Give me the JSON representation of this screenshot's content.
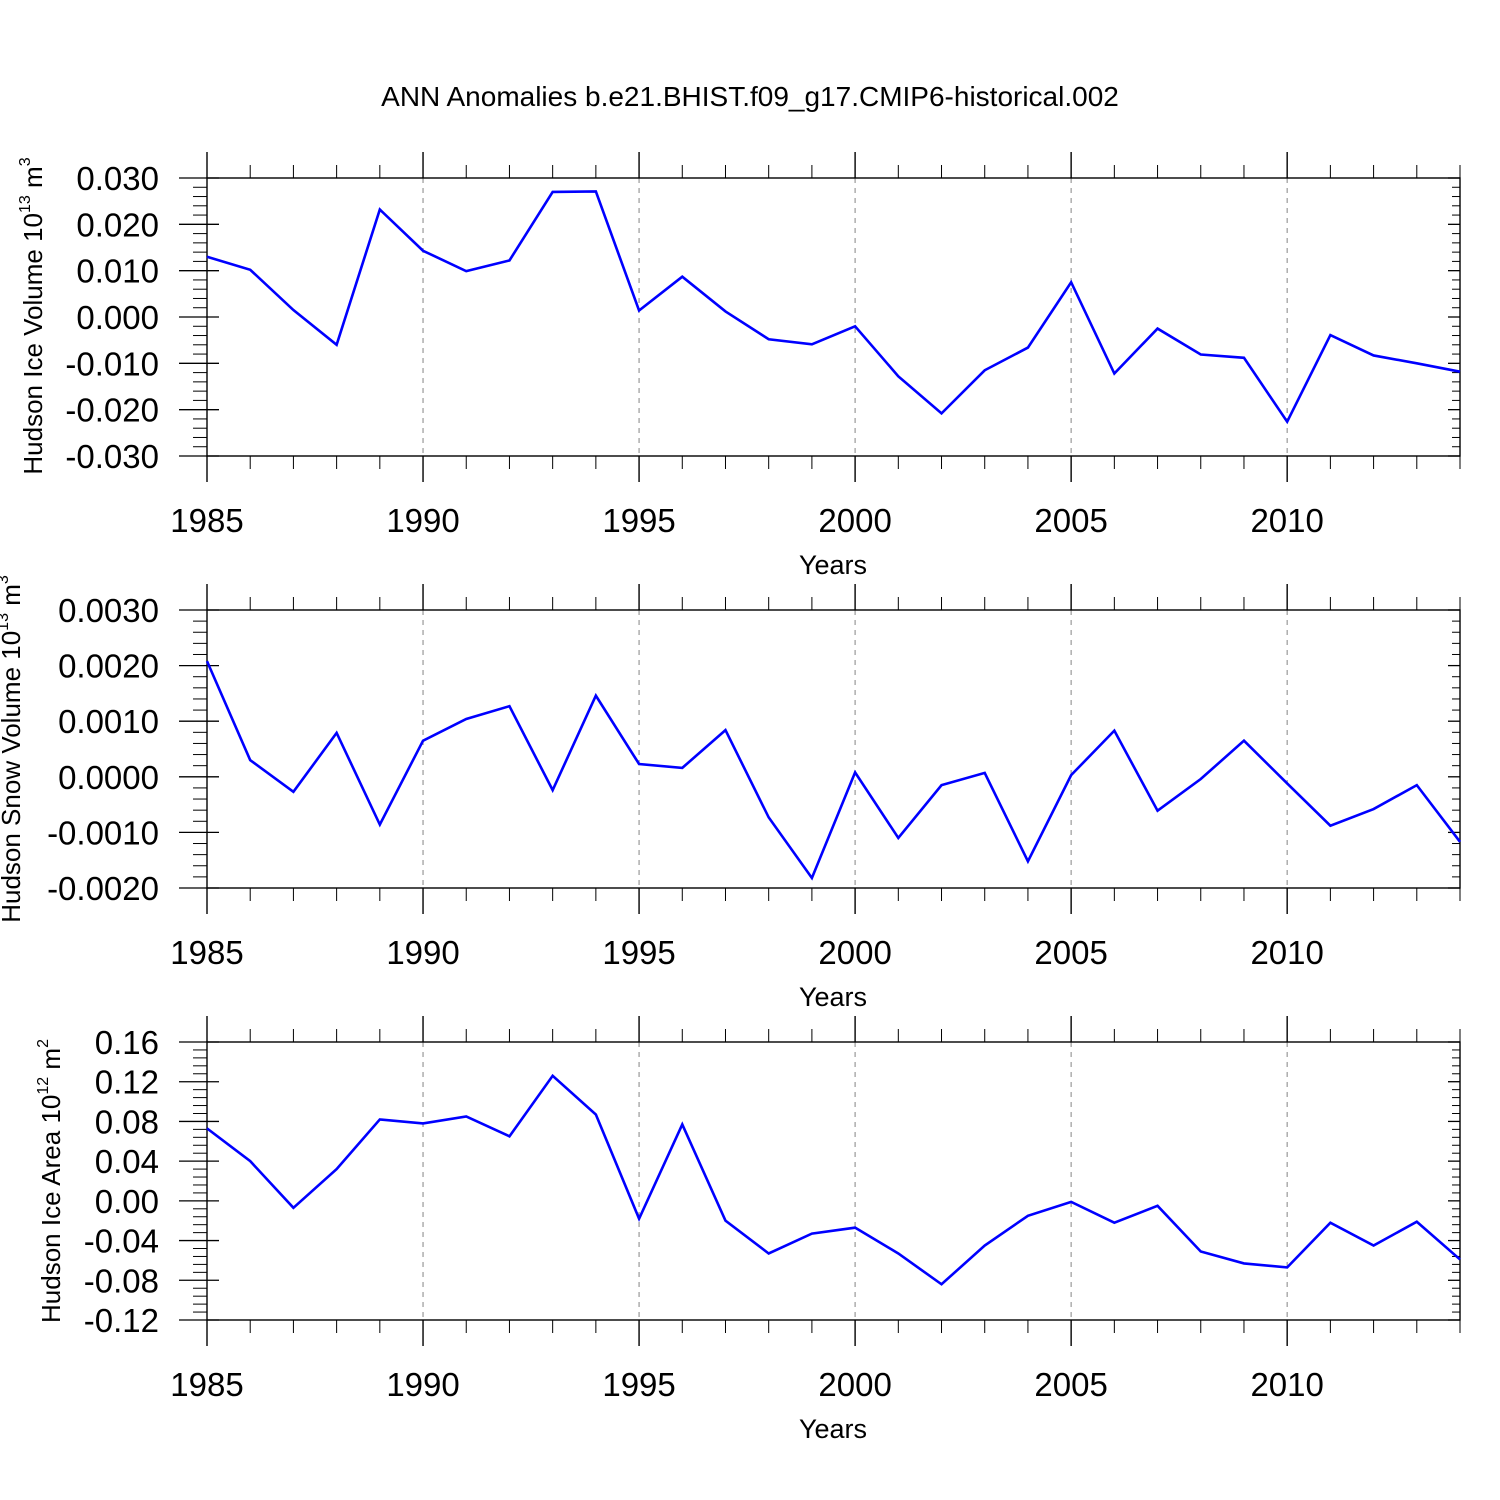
{
  "title": "ANN Anomalies b.e21.BHIST.f09_g17.CMIP6-historical.002",
  "colors": {
    "line": "#0000ff",
    "axis": "#000000",
    "grid": "#999999",
    "background": "#ffffff"
  },
  "chart_data": [
    {
      "type": "line",
      "title": "ANN Anomalies b.e21.BHIST.f09_g17.CMIP6-historical.002",
      "xlabel": "Years",
      "ylabel": {
        "text": "Hudson Ice Volume 10",
        "exp": "13",
        "unit": "m",
        "unit_exp": "3"
      },
      "xlim": [
        1985,
        2014
      ],
      "ylim": [
        -0.03,
        0.03
      ],
      "x_ticks": [
        1985,
        1990,
        1995,
        2000,
        2005,
        2010
      ],
      "x_tick_labels": [
        "1985",
        "1990",
        "1995",
        "2000",
        "2005",
        "2010"
      ],
      "y_ticks": [
        -0.03,
        -0.02,
        -0.01,
        0.0,
        0.01,
        0.02,
        0.03
      ],
      "y_tick_labels": [
        "-0.030",
        "-0.020",
        "-0.010",
        "0.000",
        "0.010",
        "0.020",
        "0.030"
      ],
      "grid": "vertical dashed at labeled years",
      "x": [
        1985,
        1986,
        1987,
        1988,
        1989,
        1990,
        1991,
        1992,
        1993,
        1994,
        1995,
        1996,
        1997,
        1998,
        1999,
        2000,
        2001,
        2002,
        2003,
        2004,
        2005,
        2006,
        2007,
        2008,
        2009,
        2010,
        2011,
        2012,
        2013,
        2014
      ],
      "series": [
        {
          "values": [
            0.013,
            0.0102,
            0.0015,
            -0.006,
            0.0232,
            0.0143,
            0.0099,
            0.0122,
            0.027,
            0.0271,
            0.0014,
            0.0087,
            0.0012,
            -0.0048,
            -0.0059,
            -0.002,
            -0.0128,
            -0.0208,
            -0.0115,
            -0.0066,
            0.0075,
            -0.0122,
            -0.0025,
            -0.0081,
            -0.0088,
            -0.0226,
            -0.0039,
            -0.0083,
            -0.01,
            -0.0118
          ]
        }
      ]
    },
    {
      "type": "line",
      "xlabel": "Years",
      "ylabel": {
        "text": "Hudson Snow Volume 10",
        "exp": "13",
        "unit": "m",
        "unit_exp": "3"
      },
      "xlim": [
        1985,
        2014
      ],
      "ylim": [
        -0.002,
        0.003
      ],
      "x_ticks": [
        1985,
        1990,
        1995,
        2000,
        2005,
        2010
      ],
      "x_tick_labels": [
        "1985",
        "1990",
        "1995",
        "2000",
        "2005",
        "2010"
      ],
      "y_ticks": [
        -0.002,
        -0.001,
        0.0,
        0.001,
        0.002,
        0.003
      ],
      "y_tick_labels": [
        "-0.0020",
        "-0.0010",
        "0.0000",
        "0.0010",
        "0.0020",
        "0.0030"
      ],
      "grid": "vertical dashed at labeled years",
      "x": [
        1985,
        1986,
        1987,
        1988,
        1989,
        1990,
        1991,
        1992,
        1993,
        1994,
        1995,
        1996,
        1997,
        1998,
        1999,
        2000,
        2001,
        2002,
        2003,
        2004,
        2005,
        2006,
        2007,
        2008,
        2009,
        2010,
        2011,
        2012,
        2013,
        2014
      ],
      "series": [
        {
          "values": [
            0.00208,
            0.0003,
            -0.00027,
            0.00079,
            -0.00086,
            0.00065,
            0.00104,
            0.00127,
            -0.00024,
            0.00146,
            0.00023,
            0.00016,
            0.00084,
            -0.00073,
            -0.00182,
            8e-05,
            -0.0011,
            -0.00015,
            7e-05,
            -0.00152,
            3e-05,
            0.00083,
            -0.00061,
            -4e-05,
            0.00065,
            -0.00012,
            -0.00088,
            -0.00058,
            -0.00015,
            -0.00117
          ]
        }
      ]
    },
    {
      "type": "line",
      "xlabel": "Years",
      "ylabel": {
        "text": "Hudson Ice Area 10",
        "exp": "12",
        "unit": "m",
        "unit_exp": "2"
      },
      "xlim": [
        1985,
        2014
      ],
      "ylim": [
        -0.12,
        0.16
      ],
      "x_ticks": [
        1985,
        1990,
        1995,
        2000,
        2005,
        2010
      ],
      "x_tick_labels": [
        "1985",
        "1990",
        "1995",
        "2000",
        "2005",
        "2010"
      ],
      "y_ticks": [
        -0.12,
        -0.08,
        -0.04,
        0.0,
        0.04,
        0.08,
        0.12,
        0.16
      ],
      "y_tick_labels": [
        "-0.12",
        "-0.08",
        "-0.04",
        "0.00",
        "0.04",
        "0.08",
        "0.12",
        "0.16"
      ],
      "grid": "vertical dashed at labeled years",
      "x": [
        1985,
        1986,
        1987,
        1988,
        1989,
        1990,
        1991,
        1992,
        1993,
        1994,
        1995,
        1996,
        1997,
        1998,
        1999,
        2000,
        2001,
        2002,
        2003,
        2004,
        2005,
        2006,
        2007,
        2008,
        2009,
        2010,
        2011,
        2012,
        2013,
        2014
      ],
      "series": [
        {
          "values": [
            0.073,
            0.04,
            -0.007,
            0.032,
            0.082,
            0.078,
            0.085,
            0.065,
            0.126,
            0.087,
            -0.018,
            0.077,
            -0.02,
            -0.053,
            -0.033,
            -0.027,
            -0.053,
            -0.084,
            -0.045,
            -0.015,
            -0.001,
            -0.022,
            -0.005,
            -0.051,
            -0.063,
            -0.067,
            -0.022,
            -0.045,
            -0.021,
            -0.059
          ]
        }
      ]
    }
  ]
}
